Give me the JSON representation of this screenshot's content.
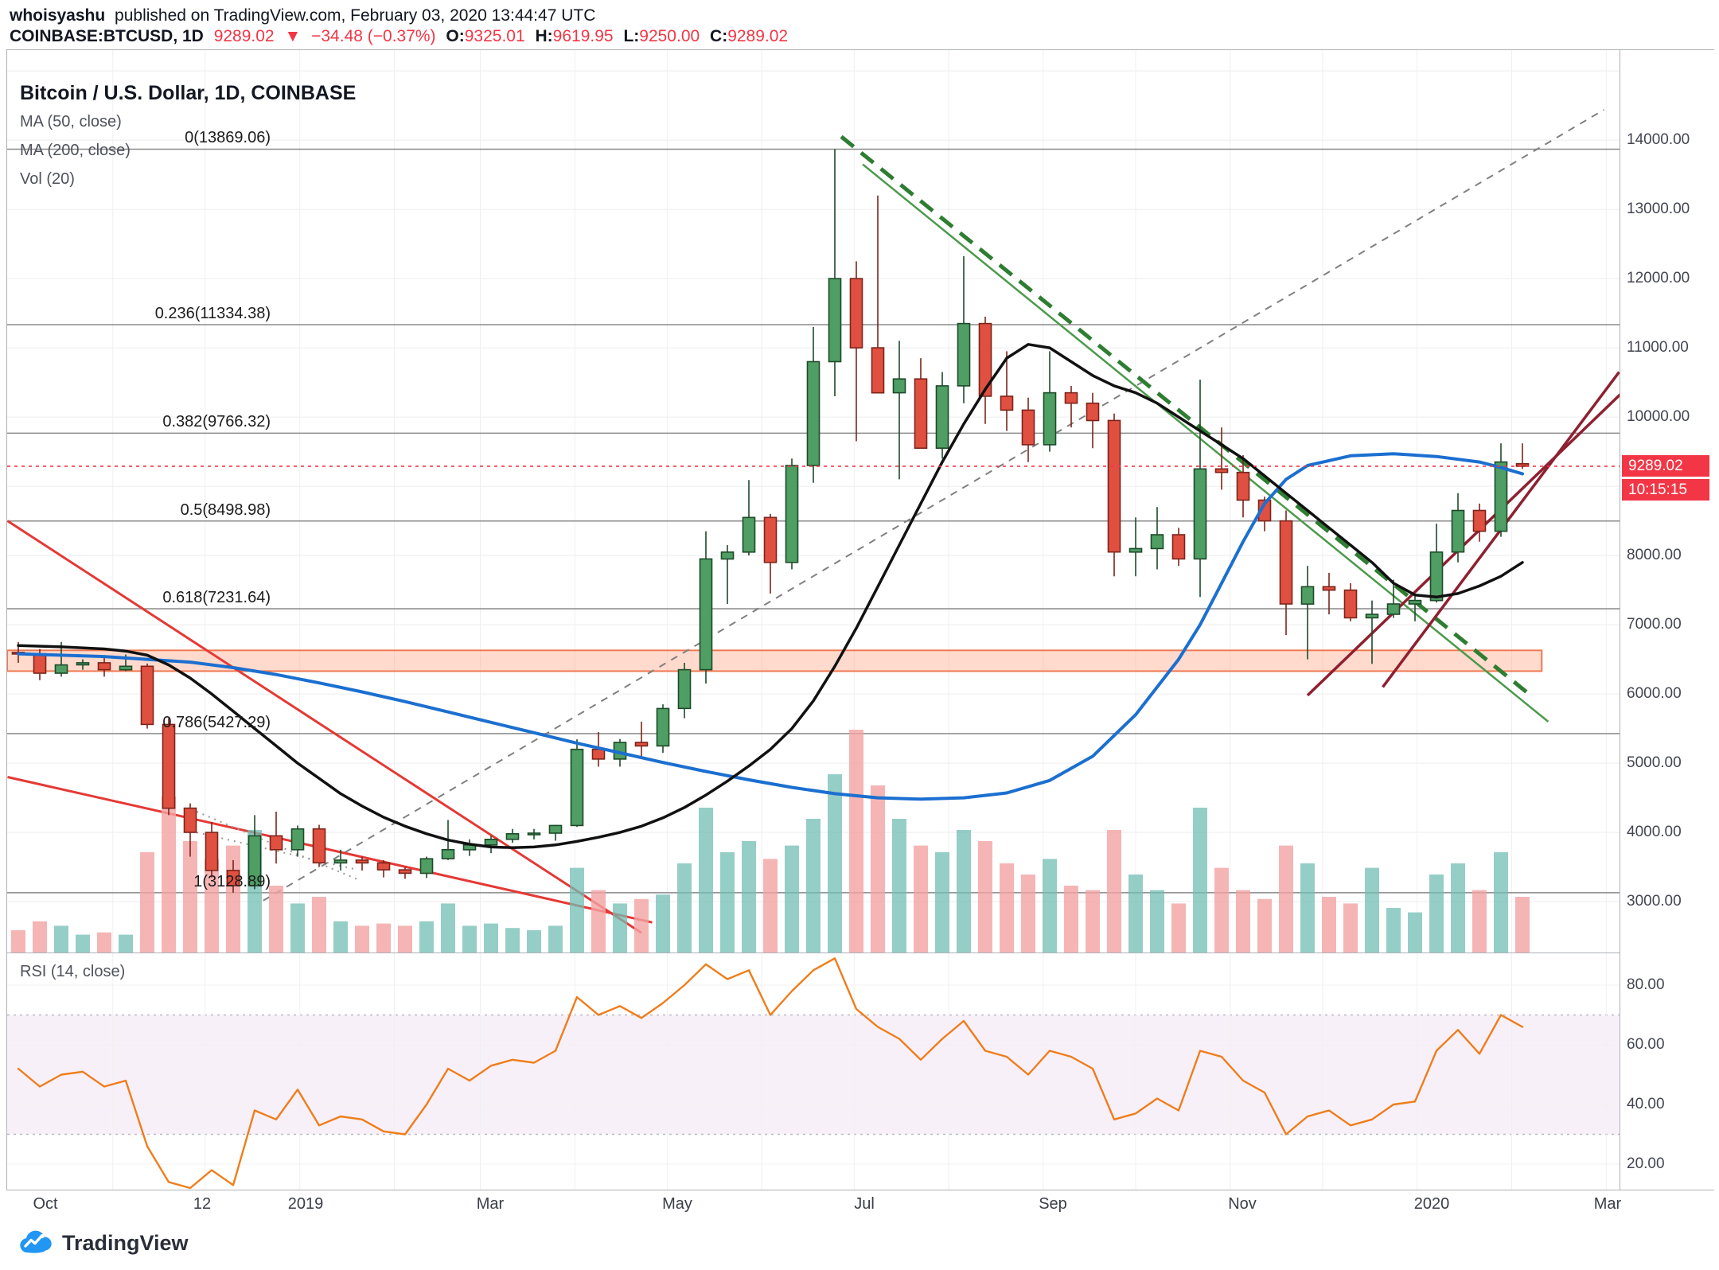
{
  "header": {
    "publisher": "whoisyashu",
    "publish_text": "published on TradingView.com, February 03, 2020 13:44:47 UTC",
    "symbol": "COINBASE:BTCUSD, 1D",
    "last_price": "9289.02",
    "change_arrow": "▼",
    "change": "−34.48 (−0.37%)",
    "o_label": "O:",
    "o": "9325.01",
    "h_label": "H:",
    "h": "9619.95",
    "l_label": "L:",
    "l": "9250.00",
    "c_label": "C:",
    "c": "9289.02"
  },
  "legend": {
    "title": "Bitcoin / U.S. Dollar, 1D, COINBASE",
    "ma50": "MA (50, close)",
    "ma200": "MA (200, close)",
    "vol": "Vol (20)"
  },
  "rsi_label": "RSI (14, close)",
  "logo_text": "TradingView",
  "colors": {
    "up_fill": "#4f9e63",
    "up_border": "#1d4a2a",
    "down_fill": "#e05040",
    "down_border": "#7c241a",
    "vol_up": "rgba(114,190,179,0.75)",
    "vol_down": "rgba(242,162,162,0.8)",
    "ma50": "#111111",
    "ma200": "#1b6fd0",
    "rsi": "#ef7d1a",
    "rsi_band_fill": "rgba(156,39,176,0.07)",
    "accent_red": "#f23645",
    "fib_line": "#8a8a8a",
    "grid": "#f0f0f0",
    "frame": "#aeb1b8"
  },
  "chart_data": {
    "type": "candlestick",
    "title": "Bitcoin / U.S. Dollar, 1D, COINBASE",
    "x_range": "Oct 2018 - Mar 2020 (weekly-resolution approximation of daily chart)",
    "ylim": [
      2265,
      15300
    ],
    "rsi_ylim": [
      10,
      90
    ],
    "current_price": 9289.02,
    "current_price_label": "9289.02",
    "countdown": "10:15:15",
    "price_axis": {
      "ticks": [
        14000,
        13000,
        12000,
        11000,
        10000,
        8000,
        7000,
        6000,
        5000,
        4000,
        3000
      ]
    },
    "rsi_ticks": [
      80,
      60,
      40,
      20
    ],
    "rsi_band": [
      30,
      70
    ],
    "time_axis": [
      {
        "t": "Oct",
        "i": 1.3
      },
      {
        "t": "12",
        "i": 8.6
      },
      {
        "t": "2019",
        "i": 13.4
      },
      {
        "t": "Mar",
        "i": 22.0
      },
      {
        "t": "May",
        "i": 30.7
      },
      {
        "t": "Jul",
        "i": 39.4
      },
      {
        "t": "Sep",
        "i": 48.2
      },
      {
        "t": "Nov",
        "i": 57.0
      },
      {
        "t": "2020",
        "i": 65.8
      },
      {
        "t": "Mar",
        "i": 74.0
      }
    ],
    "month_grid": [
      4.4,
      8.7,
      13.1,
      17.5,
      21.5,
      25.9,
      30.2,
      34.6,
      38.9,
      43.3,
      47.7,
      52.0,
      56.4,
      60.7,
      65.1,
      69.5,
      73.9
    ],
    "fib_levels": [
      {
        "label": "0(13869.06)",
        "value": 13869.06
      },
      {
        "label": "0.236(11334.38)",
        "value": 11334.38
      },
      {
        "label": "0.382(9766.32)",
        "value": 9766.32
      },
      {
        "label": "0.5(8498.98)",
        "value": 8498.98
      },
      {
        "label": "0.618(7231.64)",
        "value": 7231.64
      },
      {
        "label": "0.786(5427.29)",
        "value": 5427.29
      },
      {
        "label": "1(3128.89)",
        "value": 3128.89
      }
    ],
    "band": {
      "top": 6630,
      "bottom": 6330,
      "i2": 70.9,
      "fill": "rgba(255,148,112,0.35)",
      "stroke": "#ef7a52"
    },
    "trendlines": [
      {
        "i1": 11.4,
        "p1": 3015,
        "i2": 73.8,
        "p2": 14440,
        "color": "#808080",
        "width": 2,
        "dash": "9 8"
      },
      {
        "i1": -0.5,
        "p1": 8500,
        "i2": 29.0,
        "p2": 2550,
        "color": "#e53935",
        "width": 3,
        "dash": ""
      },
      {
        "i1": -0.5,
        "p1": 4800,
        "i2": 29.5,
        "p2": 2700,
        "color": "#e53935",
        "width": 3,
        "dash": ""
      },
      {
        "i1": 38.3,
        "p1": 14050,
        "i2": 70.5,
        "p2": 5950,
        "color": "#2e7d32",
        "width": 5,
        "dash": "20 12"
      },
      {
        "i1": 39.3,
        "p1": 13650,
        "i2": 71.2,
        "p2": 5600,
        "color": "#4c9a4c",
        "width": 2.5,
        "dash": ""
      },
      {
        "i1": 60.0,
        "p1": 5980,
        "i2": 75.3,
        "p2": 10550,
        "color": "#8e2030",
        "width": 3.5,
        "dash": ""
      },
      {
        "i1": 63.5,
        "p1": 6100,
        "i2": 74.5,
        "p2": 10650,
        "color": "#8e2030",
        "width": 3.5,
        "dash": ""
      },
      {
        "i1": 8.3,
        "p1": 4300,
        "i2": 15.8,
        "p2": 3320,
        "color": "#999999",
        "width": 2,
        "dash": "2 6"
      },
      {
        "i1": 8.3,
        "p1": 4000,
        "i2": 15.8,
        "p2": 3460,
        "color": "#999999",
        "width": 2,
        "dash": "2 6"
      }
    ],
    "candles_format": [
      "open",
      "high",
      "low",
      "close",
      "volume(0-100)",
      "rsi"
    ],
    "candles": [
      [
        6600,
        6750,
        6450,
        6580,
        10,
        52
      ],
      [
        6580,
        6650,
        6200,
        6300,
        14,
        46
      ],
      [
        6300,
        6750,
        6250,
        6420,
        12,
        50
      ],
      [
        6420,
        6500,
        6350,
        6450,
        8,
        51
      ],
      [
        6450,
        6550,
        6250,
        6350,
        9,
        46
      ],
      [
        6350,
        6570,
        6330,
        6400,
        8,
        48
      ],
      [
        6400,
        6440,
        5500,
        5560,
        45,
        26
      ],
      [
        5560,
        5650,
        4250,
        4350,
        70,
        14
      ],
      [
        4350,
        4420,
        3650,
        4000,
        50,
        12
      ],
      [
        4000,
        4150,
        3350,
        3450,
        42,
        18
      ],
      [
        3450,
        3600,
        3128.89,
        3230,
        48,
        13
      ],
      [
        3230,
        4250,
        3180,
        3950,
        55,
        38
      ],
      [
        3950,
        4300,
        3550,
        3750,
        30,
        35
      ],
      [
        3750,
        4100,
        3650,
        4050,
        22,
        45
      ],
      [
        4050,
        4110,
        3500,
        3560,
        25,
        33
      ],
      [
        3560,
        3750,
        3450,
        3600,
        14,
        36
      ],
      [
        3600,
        3650,
        3450,
        3560,
        12,
        35
      ],
      [
        3560,
        3600,
        3350,
        3460,
        13,
        31
      ],
      [
        3460,
        3500,
        3330,
        3410,
        12,
        30
      ],
      [
        3410,
        3650,
        3340,
        3620,
        14,
        40
      ],
      [
        3620,
        4180,
        3600,
        3750,
        22,
        52
      ],
      [
        3750,
        3900,
        3660,
        3820,
        12,
        48
      ],
      [
        3820,
        3950,
        3700,
        3900,
        13,
        53
      ],
      [
        3900,
        4050,
        3850,
        3980,
        11,
        55
      ],
      [
        3980,
        4050,
        3900,
        3990,
        10,
        54
      ],
      [
        3990,
        4110,
        3880,
        4100,
        12,
        58
      ],
      [
        4100,
        5345,
        4080,
        5200,
        38,
        76
      ],
      [
        5200,
        5450,
        4950,
        5060,
        28,
        70
      ],
      [
        5060,
        5350,
        4950,
        5300,
        22,
        73
      ],
      [
        5300,
        5600,
        5100,
        5250,
        24,
        69
      ],
      [
        5250,
        5850,
        5150,
        5790,
        26,
        74
      ],
      [
        5790,
        6450,
        5650,
        6350,
        40,
        80
      ],
      [
        6350,
        8350,
        6150,
        7950,
        65,
        87
      ],
      [
        7950,
        8150,
        7300,
        8050,
        45,
        82
      ],
      [
        8050,
        9090,
        8000,
        8550,
        50,
        85
      ],
      [
        8550,
        8600,
        7450,
        7900,
        42,
        70
      ],
      [
        7900,
        9400,
        7800,
        9300,
        48,
        78
      ],
      [
        9300,
        11300,
        9050,
        10800,
        60,
        85
      ],
      [
        10800,
        13869.06,
        10300,
        12000,
        80,
        89
      ],
      [
        12000,
        12250,
        9650,
        11000,
        100,
        72
      ],
      [
        11000,
        13200,
        10900,
        10350,
        75,
        66
      ],
      [
        10350,
        11100,
        9100,
        10550,
        60,
        62
      ],
      [
        10550,
        10850,
        9550,
        9550,
        48,
        55
      ],
      [
        9550,
        10650,
        9400,
        10450,
        45,
        62
      ],
      [
        10450,
        12325,
        10200,
        11350,
        55,
        68
      ],
      [
        11350,
        11450,
        9900,
        10300,
        50,
        58
      ],
      [
        10300,
        10950,
        9800,
        10100,
        40,
        56
      ],
      [
        10100,
        10280,
        9350,
        9600,
        35,
        50
      ],
      [
        9600,
        10950,
        9500,
        10350,
        42,
        58
      ],
      [
        10350,
        10450,
        9850,
        10200,
        30,
        56
      ],
      [
        10200,
        10350,
        9550,
        9950,
        28,
        52
      ],
      [
        9950,
        10050,
        7700,
        8050,
        55,
        35
      ],
      [
        8050,
        8550,
        7700,
        8100,
        35,
        37
      ],
      [
        8100,
        8700,
        7800,
        8300,
        28,
        42
      ],
      [
        8300,
        8400,
        7850,
        7950,
        22,
        38
      ],
      [
        7950,
        10540,
        7400,
        9250,
        65,
        58
      ],
      [
        9250,
        9850,
        8950,
        9200,
        38,
        56
      ],
      [
        9200,
        9450,
        8550,
        8800,
        28,
        48
      ],
      [
        8800,
        8850,
        8350,
        8500,
        24,
        44
      ],
      [
        8500,
        8650,
        6850,
        7300,
        48,
        30
      ],
      [
        7300,
        7850,
        6500,
        7550,
        40,
        36
      ],
      [
        7550,
        7750,
        7150,
        7500,
        25,
        38
      ],
      [
        7500,
        7600,
        7050,
        7100,
        22,
        33
      ],
      [
        7100,
        7350,
        6435,
        7150,
        38,
        35
      ],
      [
        7150,
        7650,
        7100,
        7300,
        20,
        40
      ],
      [
        7300,
        7450,
        7050,
        7350,
        18,
        41
      ],
      [
        7350,
        8460,
        7320,
        8050,
        35,
        58
      ],
      [
        8050,
        8900,
        7900,
        8650,
        40,
        65
      ],
      [
        8650,
        8750,
        8200,
        8350,
        28,
        57
      ],
      [
        8350,
        9620,
        8270,
        9350,
        45,
        70
      ],
      [
        9325.01,
        9619.95,
        9250,
        9289.02,
        25,
        66
      ]
    ],
    "ma50": [
      [
        0,
        6700
      ],
      [
        2,
        6680
      ],
      [
        4,
        6650
      ],
      [
        5,
        6620
      ],
      [
        6,
        6560
      ],
      [
        7,
        6420
      ],
      [
        8,
        6230
      ],
      [
        9,
        6000
      ],
      [
        10,
        5750
      ],
      [
        11,
        5500
      ],
      [
        12,
        5250
      ],
      [
        13,
        5000
      ],
      [
        14,
        4780
      ],
      [
        15,
        4560
      ],
      [
        16,
        4380
      ],
      [
        17,
        4220
      ],
      [
        18,
        4090
      ],
      [
        19,
        3980
      ],
      [
        20,
        3890
      ],
      [
        21,
        3830
      ],
      [
        22,
        3790
      ],
      [
        23,
        3780
      ],
      [
        24,
        3790
      ],
      [
        25,
        3820
      ],
      [
        26,
        3870
      ],
      [
        27,
        3930
      ],
      [
        28,
        4000
      ],
      [
        29,
        4090
      ],
      [
        30,
        4210
      ],
      [
        31,
        4360
      ],
      [
        32,
        4540
      ],
      [
        33,
        4740
      ],
      [
        34,
        4960
      ],
      [
        35,
        5200
      ],
      [
        36,
        5500
      ],
      [
        37,
        5900
      ],
      [
        38,
        6400
      ],
      [
        39,
        6950
      ],
      [
        40,
        7550
      ],
      [
        41,
        8150
      ],
      [
        42,
        8750
      ],
      [
        43,
        9350
      ],
      [
        44,
        9900
      ],
      [
        45,
        10400
      ],
      [
        46,
        10850
      ],
      [
        47,
        11050
      ],
      [
        48,
        11000
      ],
      [
        49,
        10800
      ],
      [
        50,
        10600
      ],
      [
        51,
        10450
      ],
      [
        52,
        10350
      ],
      [
        53,
        10200
      ],
      [
        54,
        10000
      ],
      [
        55,
        9800
      ],
      [
        56,
        9600
      ],
      [
        57,
        9400
      ],
      [
        58,
        9150
      ],
      [
        59,
        8900
      ],
      [
        60,
        8650
      ],
      [
        61,
        8400
      ],
      [
        62,
        8150
      ],
      [
        63,
        7900
      ],
      [
        64,
        7600
      ],
      [
        65,
        7430
      ],
      [
        66,
        7400
      ],
      [
        67,
        7450
      ],
      [
        68,
        7560
      ],
      [
        69,
        7700
      ],
      [
        70,
        7900
      ]
    ],
    "ma200": [
      [
        0,
        6580
      ],
      [
        4,
        6540
      ],
      [
        8,
        6460
      ],
      [
        10,
        6380
      ],
      [
        12,
        6280
      ],
      [
        14,
        6160
      ],
      [
        16,
        6030
      ],
      [
        18,
        5890
      ],
      [
        20,
        5740
      ],
      [
        22,
        5590
      ],
      [
        24,
        5440
      ],
      [
        26,
        5290
      ],
      [
        28,
        5150
      ],
      [
        30,
        5010
      ],
      [
        32,
        4880
      ],
      [
        34,
        4760
      ],
      [
        36,
        4650
      ],
      [
        38,
        4560
      ],
      [
        40,
        4500
      ],
      [
        42,
        4480
      ],
      [
        44,
        4500
      ],
      [
        46,
        4570
      ],
      [
        48,
        4750
      ],
      [
        50,
        5100
      ],
      [
        52,
        5700
      ],
      [
        54,
        6500
      ],
      [
        55,
        7000
      ],
      [
        56,
        7600
      ],
      [
        57,
        8200
      ],
      [
        58,
        8750
      ],
      [
        59,
        9100
      ],
      [
        60,
        9300
      ],
      [
        62,
        9440
      ],
      [
        64,
        9470
      ],
      [
        66,
        9430
      ],
      [
        68,
        9350
      ],
      [
        69,
        9270
      ],
      [
        70,
        9180
      ]
    ]
  }
}
